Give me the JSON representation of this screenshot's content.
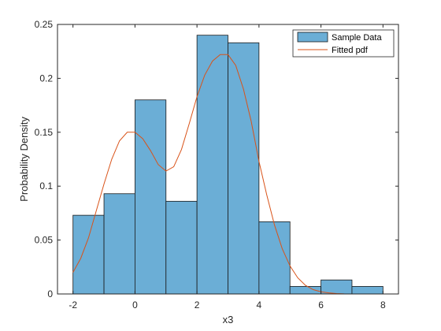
{
  "chart_data": {
    "type": "bar",
    "title": "",
    "xlabel": "x3",
    "ylabel": "Probability Density",
    "xlim": [
      -2.5,
      8.5
    ],
    "ylim": [
      0,
      0.25
    ],
    "xticks": [
      -2,
      0,
      2,
      4,
      6,
      8
    ],
    "xtick_labels": [
      "-2",
      "0",
      "2",
      "4",
      "6",
      "8"
    ],
    "yticks": [
      0,
      0.05,
      0.1,
      0.15,
      0.2,
      0.25
    ],
    "ytick_labels": [
      "0",
      "0.05",
      "0.1",
      "0.15",
      "0.2",
      "0.25"
    ],
    "grid": false,
    "legend_position": "top-right",
    "series": [
      {
        "name": "Sample Data",
        "kind": "histogram",
        "bin_edges": [
          -2,
          -1,
          0,
          1,
          2,
          3,
          4,
          5,
          6,
          7,
          8
        ],
        "values": [
          0.073,
          0.093,
          0.18,
          0.086,
          0.24,
          0.233,
          0.067,
          0.007,
          0.013,
          0.007
        ],
        "color": "#6baed6"
      },
      {
        "name": "Fitted pdf",
        "kind": "line",
        "color": "#d95319",
        "x": [
          -2,
          -1.75,
          -1.5,
          -1.25,
          -1,
          -0.75,
          -0.5,
          -0.25,
          0,
          0.25,
          0.5,
          0.75,
          1,
          1.25,
          1.5,
          1.75,
          2,
          2.25,
          2.5,
          2.75,
          3,
          3.25,
          3.5,
          3.75,
          4,
          4.25,
          4.5,
          4.75,
          5,
          5.25,
          5.5,
          5.75,
          6,
          6.25,
          6.5,
          6.75,
          7
        ],
        "y": [
          0.02,
          0.033,
          0.052,
          0.077,
          0.102,
          0.125,
          0.142,
          0.15,
          0.15,
          0.144,
          0.133,
          0.12,
          0.114,
          0.118,
          0.134,
          0.158,
          0.183,
          0.203,
          0.216,
          0.222,
          0.222,
          0.212,
          0.19,
          0.16,
          0.123,
          0.092,
          0.064,
          0.042,
          0.026,
          0.015,
          0.008,
          0.004,
          0.002,
          0.001,
          0.0004,
          0.0001,
          0.0
        ]
      }
    ]
  }
}
